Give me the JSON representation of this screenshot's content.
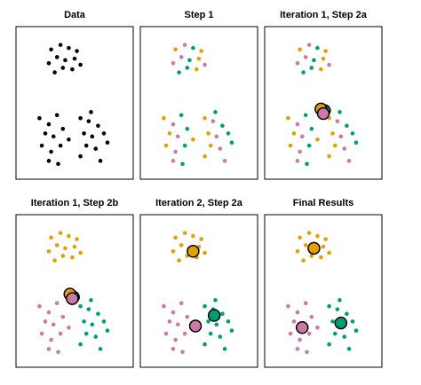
{
  "chart_data": [
    {
      "type": "scatter",
      "title": "Data",
      "xlim": [
        0,
        100
      ],
      "ylim": [
        0,
        100
      ],
      "series": [
        {
          "color": "#000000",
          "x": [
            30,
            38,
            45,
            52,
            35,
            42,
            50,
            28,
            40,
            48,
            55,
            33,
            20,
            28,
            35,
            25,
            32,
            40,
            22,
            30,
            38,
            45,
            28,
            36,
            55,
            62,
            70,
            58,
            65,
            75,
            60,
            68,
            78,
            55,
            72,
            64
          ],
          "values": [
            85,
            88,
            86,
            84,
            80,
            78,
            79,
            76,
            73,
            72,
            75,
            70,
            40,
            36,
            42,
            30,
            28,
            33,
            22,
            18,
            22,
            26,
            12,
            10,
            40,
            38,
            35,
            30,
            28,
            30,
            22,
            20,
            24,
            15,
            12,
            44
          ]
        }
      ],
      "centroids": []
    },
    {
      "type": "scatter",
      "title": "Step 1",
      "xlim": [
        0,
        100
      ],
      "ylim": [
        0,
        100
      ],
      "series": [
        {
          "color": "#E69F00",
          "x": [
            30,
            52,
            50,
            48,
            20,
            25,
            22,
            45,
            55,
            58,
            60,
            55
          ],
          "values": [
            85,
            84,
            79,
            72,
            40,
            30,
            22,
            26,
            40,
            30,
            22,
            15
          ]
        },
        {
          "color": "#CC79A7",
          "x": [
            38,
            35,
            28,
            55,
            28,
            32,
            30,
            28,
            62,
            65,
            68,
            72
          ],
          "values": [
            88,
            80,
            76,
            75,
            36,
            28,
            18,
            12,
            38,
            28,
            20,
            12
          ]
        },
        {
          "color": "#009E73",
          "x": [
            45,
            42,
            40,
            33,
            35,
            40,
            38,
            36,
            70,
            75,
            78,
            64
          ],
          "values": [
            86,
            78,
            73,
            70,
            42,
            33,
            22,
            10,
            35,
            30,
            24,
            44
          ]
        }
      ],
      "centroids": []
    },
    {
      "type": "scatter",
      "title": "Iteration 1, Step 2a",
      "xlim": [
        0,
        100
      ],
      "ylim": [
        0,
        100
      ],
      "series": [
        {
          "color": "#E69F00",
          "x": [
            30,
            52,
            50,
            48,
            20,
            25,
            22,
            45,
            55,
            58,
            60,
            55
          ],
          "values": [
            85,
            84,
            79,
            72,
            40,
            30,
            22,
            26,
            40,
            30,
            22,
            15
          ]
        },
        {
          "color": "#CC79A7",
          "x": [
            38,
            35,
            28,
            55,
            28,
            32,
            30,
            28,
            62,
            65,
            68,
            72
          ],
          "values": [
            88,
            80,
            76,
            75,
            36,
            28,
            18,
            12,
            38,
            28,
            20,
            12
          ]
        },
        {
          "color": "#009E73",
          "x": [
            45,
            42,
            40,
            33,
            35,
            40,
            38,
            36,
            70,
            75,
            78,
            64
          ],
          "values": [
            86,
            78,
            73,
            70,
            42,
            33,
            22,
            10,
            35,
            30,
            24,
            44
          ]
        }
      ],
      "centroids": [
        {
          "color": "#009E73",
          "x": 51,
          "y": 45
        },
        {
          "color": "#E69F00",
          "x": 48,
          "y": 46
        },
        {
          "color": "#CC79A7",
          "x": 50,
          "y": 43
        }
      ]
    },
    {
      "type": "scatter",
      "title": "Iteration 1, Step 2b",
      "xlim": [
        0,
        100
      ],
      "ylim": [
        0,
        100
      ],
      "series": [
        {
          "color": "#E69F00",
          "x": [
            30,
            38,
            45,
            52,
            35,
            42,
            50,
            28,
            40,
            48,
            55,
            33
          ],
          "values": [
            85,
            88,
            86,
            84,
            80,
            78,
            79,
            76,
            73,
            72,
            75,
            70
          ]
        },
        {
          "color": "#CC79A7",
          "x": [
            20,
            28,
            35,
            25,
            32,
            40,
            22,
            30,
            38,
            45,
            28,
            36
          ],
          "values": [
            40,
            36,
            42,
            30,
            28,
            33,
            22,
            18,
            22,
            26,
            12,
            10
          ]
        },
        {
          "color": "#009E73",
          "x": [
            55,
            62,
            70,
            58,
            65,
            75,
            60,
            68,
            78,
            55,
            72,
            64
          ],
          "values": [
            40,
            38,
            35,
            30,
            28,
            30,
            22,
            20,
            24,
            15,
            12,
            44
          ]
        }
      ],
      "centroids": [
        {
          "color": "#009E73",
          "x": 49,
          "y": 46
        },
        {
          "color": "#E69F00",
          "x": 46,
          "y": 48
        },
        {
          "color": "#CC79A7",
          "x": 48,
          "y": 45
        }
      ]
    },
    {
      "type": "scatter",
      "title": "Iteration 2, Step 2a",
      "xlim": [
        0,
        100
      ],
      "ylim": [
        0,
        100
      ],
      "series": [
        {
          "color": "#E69F00",
          "x": [
            30,
            38,
            45,
            52,
            35,
            42,
            50,
            28,
            40,
            48,
            55,
            33
          ],
          "values": [
            85,
            88,
            86,
            84,
            80,
            78,
            79,
            76,
            73,
            72,
            75,
            70
          ]
        },
        {
          "color": "#CC79A7",
          "x": [
            20,
            28,
            35,
            25,
            32,
            40,
            22,
            30,
            38,
            45,
            28,
            36
          ],
          "values": [
            40,
            36,
            42,
            30,
            28,
            33,
            22,
            18,
            22,
            26,
            12,
            10
          ]
        },
        {
          "color": "#009E73",
          "x": [
            55,
            62,
            70,
            58,
            65,
            75,
            60,
            68,
            78,
            55,
            72,
            64
          ],
          "values": [
            40,
            38,
            35,
            30,
            28,
            30,
            22,
            20,
            24,
            15,
            12,
            44
          ]
        }
      ],
      "centroids": [
        {
          "color": "#E69F00",
          "x": 45,
          "y": 76
        },
        {
          "color": "#CC79A7",
          "x": 47,
          "y": 27
        },
        {
          "color": "#009E73",
          "x": 63,
          "y": 34
        }
      ]
    },
    {
      "type": "scatter",
      "title": "Final Results",
      "xlim": [
        0,
        100
      ],
      "ylim": [
        0,
        100
      ],
      "series": [
        {
          "color": "#E69F00",
          "x": [
            30,
            38,
            45,
            52,
            35,
            42,
            50,
            28,
            40,
            48,
            55,
            33
          ],
          "values": [
            85,
            88,
            86,
            84,
            80,
            78,
            79,
            76,
            73,
            72,
            75,
            70
          ]
        },
        {
          "color": "#CC79A7",
          "x": [
            20,
            28,
            35,
            25,
            32,
            40,
            22,
            30,
            38,
            45,
            28,
            36
          ],
          "values": [
            40,
            36,
            42,
            30,
            28,
            33,
            22,
            18,
            22,
            26,
            12,
            10
          ]
        },
        {
          "color": "#009E73",
          "x": [
            55,
            62,
            70,
            58,
            65,
            75,
            60,
            68,
            78,
            55,
            72,
            64
          ],
          "values": [
            40,
            38,
            35,
            30,
            28,
            30,
            22,
            20,
            24,
            15,
            12,
            44
          ]
        }
      ],
      "centroids": [
        {
          "color": "#E69F00",
          "x": 42,
          "y": 78
        },
        {
          "color": "#CC79A7",
          "x": 32,
          "y": 26
        },
        {
          "color": "#009E73",
          "x": 65,
          "y": 29
        }
      ]
    }
  ]
}
